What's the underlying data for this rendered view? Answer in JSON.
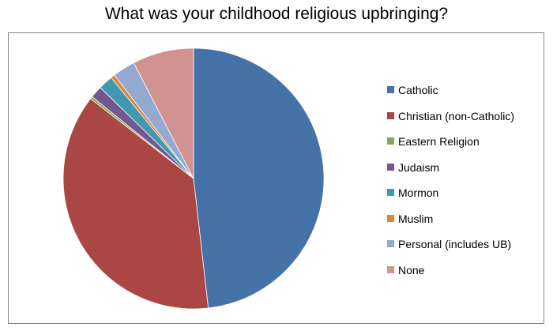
{
  "chart_data": {
    "type": "pie",
    "title": "What was your childhood religious upbringing?",
    "categories": [
      "Catholic",
      "Christian (non-Catholic)",
      "Eastern Religion",
      "Judaism",
      "Mormon",
      "Muslim",
      "Personal (includes UB)",
      "None"
    ],
    "values": [
      48.2,
      37.3,
      0.3,
      1.5,
      1.8,
      0.5,
      2.8,
      7.6
    ],
    "colors": [
      "#4572A7",
      "#AA4643",
      "#89A54E",
      "#71588F",
      "#4198AF",
      "#DB843D",
      "#93A9CF",
      "#D19392"
    ],
    "legend_position": "right",
    "start_angle": "12 o'clock",
    "direction": "clockwise"
  }
}
